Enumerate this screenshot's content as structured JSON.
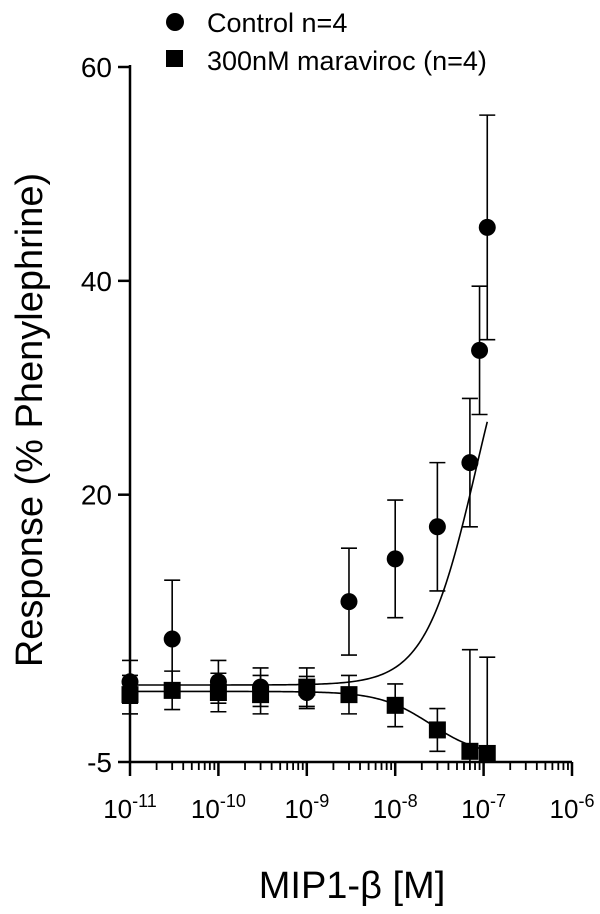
{
  "chart_data": {
    "type": "scatter",
    "xscale": "log10",
    "xlim": [
      1e-11,
      1e-06
    ],
    "ylim": [
      -5,
      60
    ],
    "xlabel": "MIP1-β [M]",
    "ylabel": "Response (% Phenylephrine)",
    "ytick_labels": [
      "-5",
      "20",
      "40",
      "60"
    ],
    "xtick_labels": [
      {
        "base": "10",
        "exp": "-11"
      },
      {
        "base": "10",
        "exp": "-10"
      },
      {
        "base": "10",
        "exp": "-9"
      },
      {
        "base": "10",
        "exp": "-8"
      },
      {
        "base": "10",
        "exp": "-7"
      },
      {
        "base": "10",
        "exp": "-6"
      }
    ],
    "legend_position": "top",
    "series": [
      {
        "name": "Control n=4",
        "marker": "circle",
        "x": [
          1e-11,
          3e-11,
          1e-10,
          3e-10,
          1e-09,
          3e-09,
          1e-08,
          3e-08,
          7e-08,
          9e-08,
          1.1e-07
        ],
        "y": [
          2.5,
          6.5,
          2.5,
          2.0,
          1.5,
          10.0,
          14.0,
          17.0,
          23.0,
          33.5,
          45.0
        ],
        "err": [
          2.0,
          5.5,
          2.0,
          1.8,
          1.5,
          5.0,
          5.5,
          6.0,
          6.0,
          6.0,
          10.5
        ]
      },
      {
        "name": "300nM maraviroc (n=4)",
        "marker": "square",
        "x": [
          1e-11,
          3e-11,
          1e-10,
          3e-10,
          1e-09,
          3e-09,
          1e-08,
          3e-08,
          7e-08,
          1.1e-07
        ],
        "y": [
          1.3,
          1.7,
          1.5,
          1.3,
          2.0,
          1.3,
          0.3,
          -2.0,
          -4.0,
          -4.2
        ],
        "err": [
          1.8,
          1.8,
          1.8,
          1.8,
          1.8,
          1.8,
          2.0,
          2.0,
          9.5,
          9.0
        ]
      }
    ],
    "fits": [
      {
        "series": "Control n=4",
        "bottom": 2.2,
        "top": 43,
        "log_ec50": -7.08,
        "hill": 1.5
      },
      {
        "series": "300nM maraviroc (n=4)",
        "bottom": 1.6,
        "top": -4.5,
        "log_ec50": -7.6,
        "hill": 1.5
      }
    ]
  }
}
